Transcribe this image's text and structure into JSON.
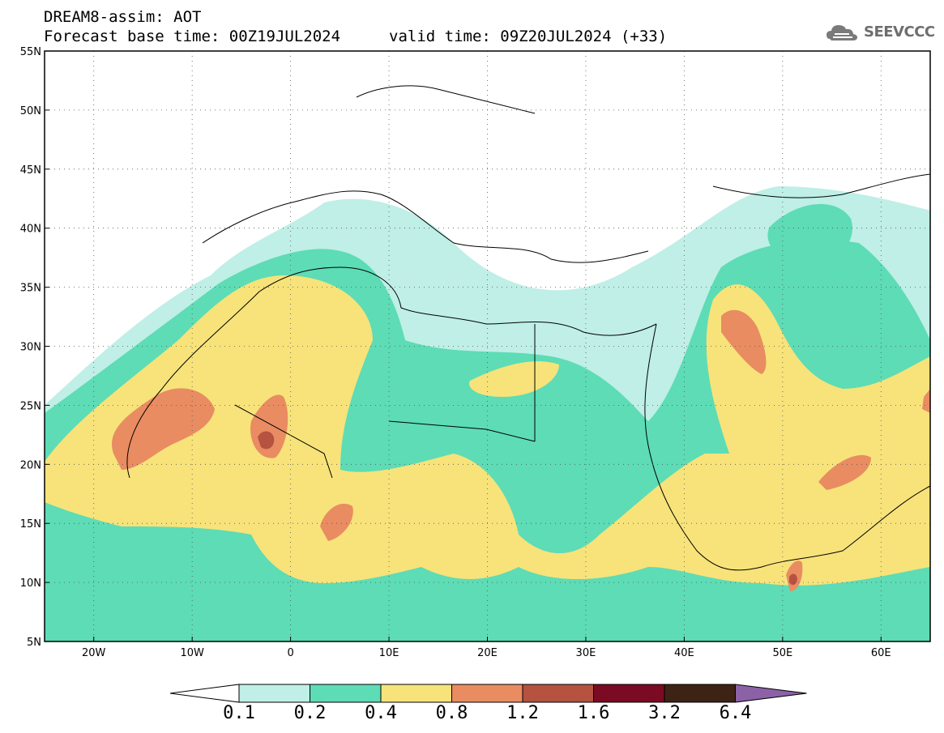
{
  "header": {
    "title": "DREAM8-assim: AOT",
    "base_time": "Forecast base time: 00Z19JUL2024",
    "valid_time": "valid time: 09Z20JUL2024 (+33)"
  },
  "logo": {
    "text": "SEEVCCC",
    "icon": "cloud-icon"
  },
  "map": {
    "lon_range": [
      -25,
      65
    ],
    "lat_range": [
      5,
      55
    ],
    "lon_ticks": [
      {
        "value": -20,
        "label": "20W"
      },
      {
        "value": -10,
        "label": "10W"
      },
      {
        "value": 0,
        "label": "0"
      },
      {
        "value": 10,
        "label": "10E"
      },
      {
        "value": 20,
        "label": "20E"
      },
      {
        "value": 30,
        "label": "30E"
      },
      {
        "value": 40,
        "label": "40E"
      },
      {
        "value": 50,
        "label": "50E"
      },
      {
        "value": 60,
        "label": "60E"
      }
    ],
    "lat_ticks": [
      {
        "value": 5,
        "label": "5N"
      },
      {
        "value": 10,
        "label": "10N"
      },
      {
        "value": 15,
        "label": "15N"
      },
      {
        "value": 20,
        "label": "20N"
      },
      {
        "value": 25,
        "label": "25N"
      },
      {
        "value": 30,
        "label": "30N"
      },
      {
        "value": 35,
        "label": "35N"
      },
      {
        "value": 40,
        "label": "40N"
      },
      {
        "value": 45,
        "label": "45N"
      },
      {
        "value": 50,
        "label": "50N"
      },
      {
        "value": 55,
        "label": "55N"
      }
    ],
    "grid": "dotted"
  },
  "colorbar": {
    "labels": [
      "0.1",
      "0.2",
      "0.4",
      "0.8",
      "1.2",
      "1.6",
      "3.2",
      "6.4"
    ],
    "colors": [
      "#ffffff",
      "#bfefe6",
      "#5ddcb6",
      "#f7e37a",
      "#e98c62",
      "#b55240",
      "#7b0a23",
      "#3d2314",
      "#8c62a7"
    ]
  }
}
